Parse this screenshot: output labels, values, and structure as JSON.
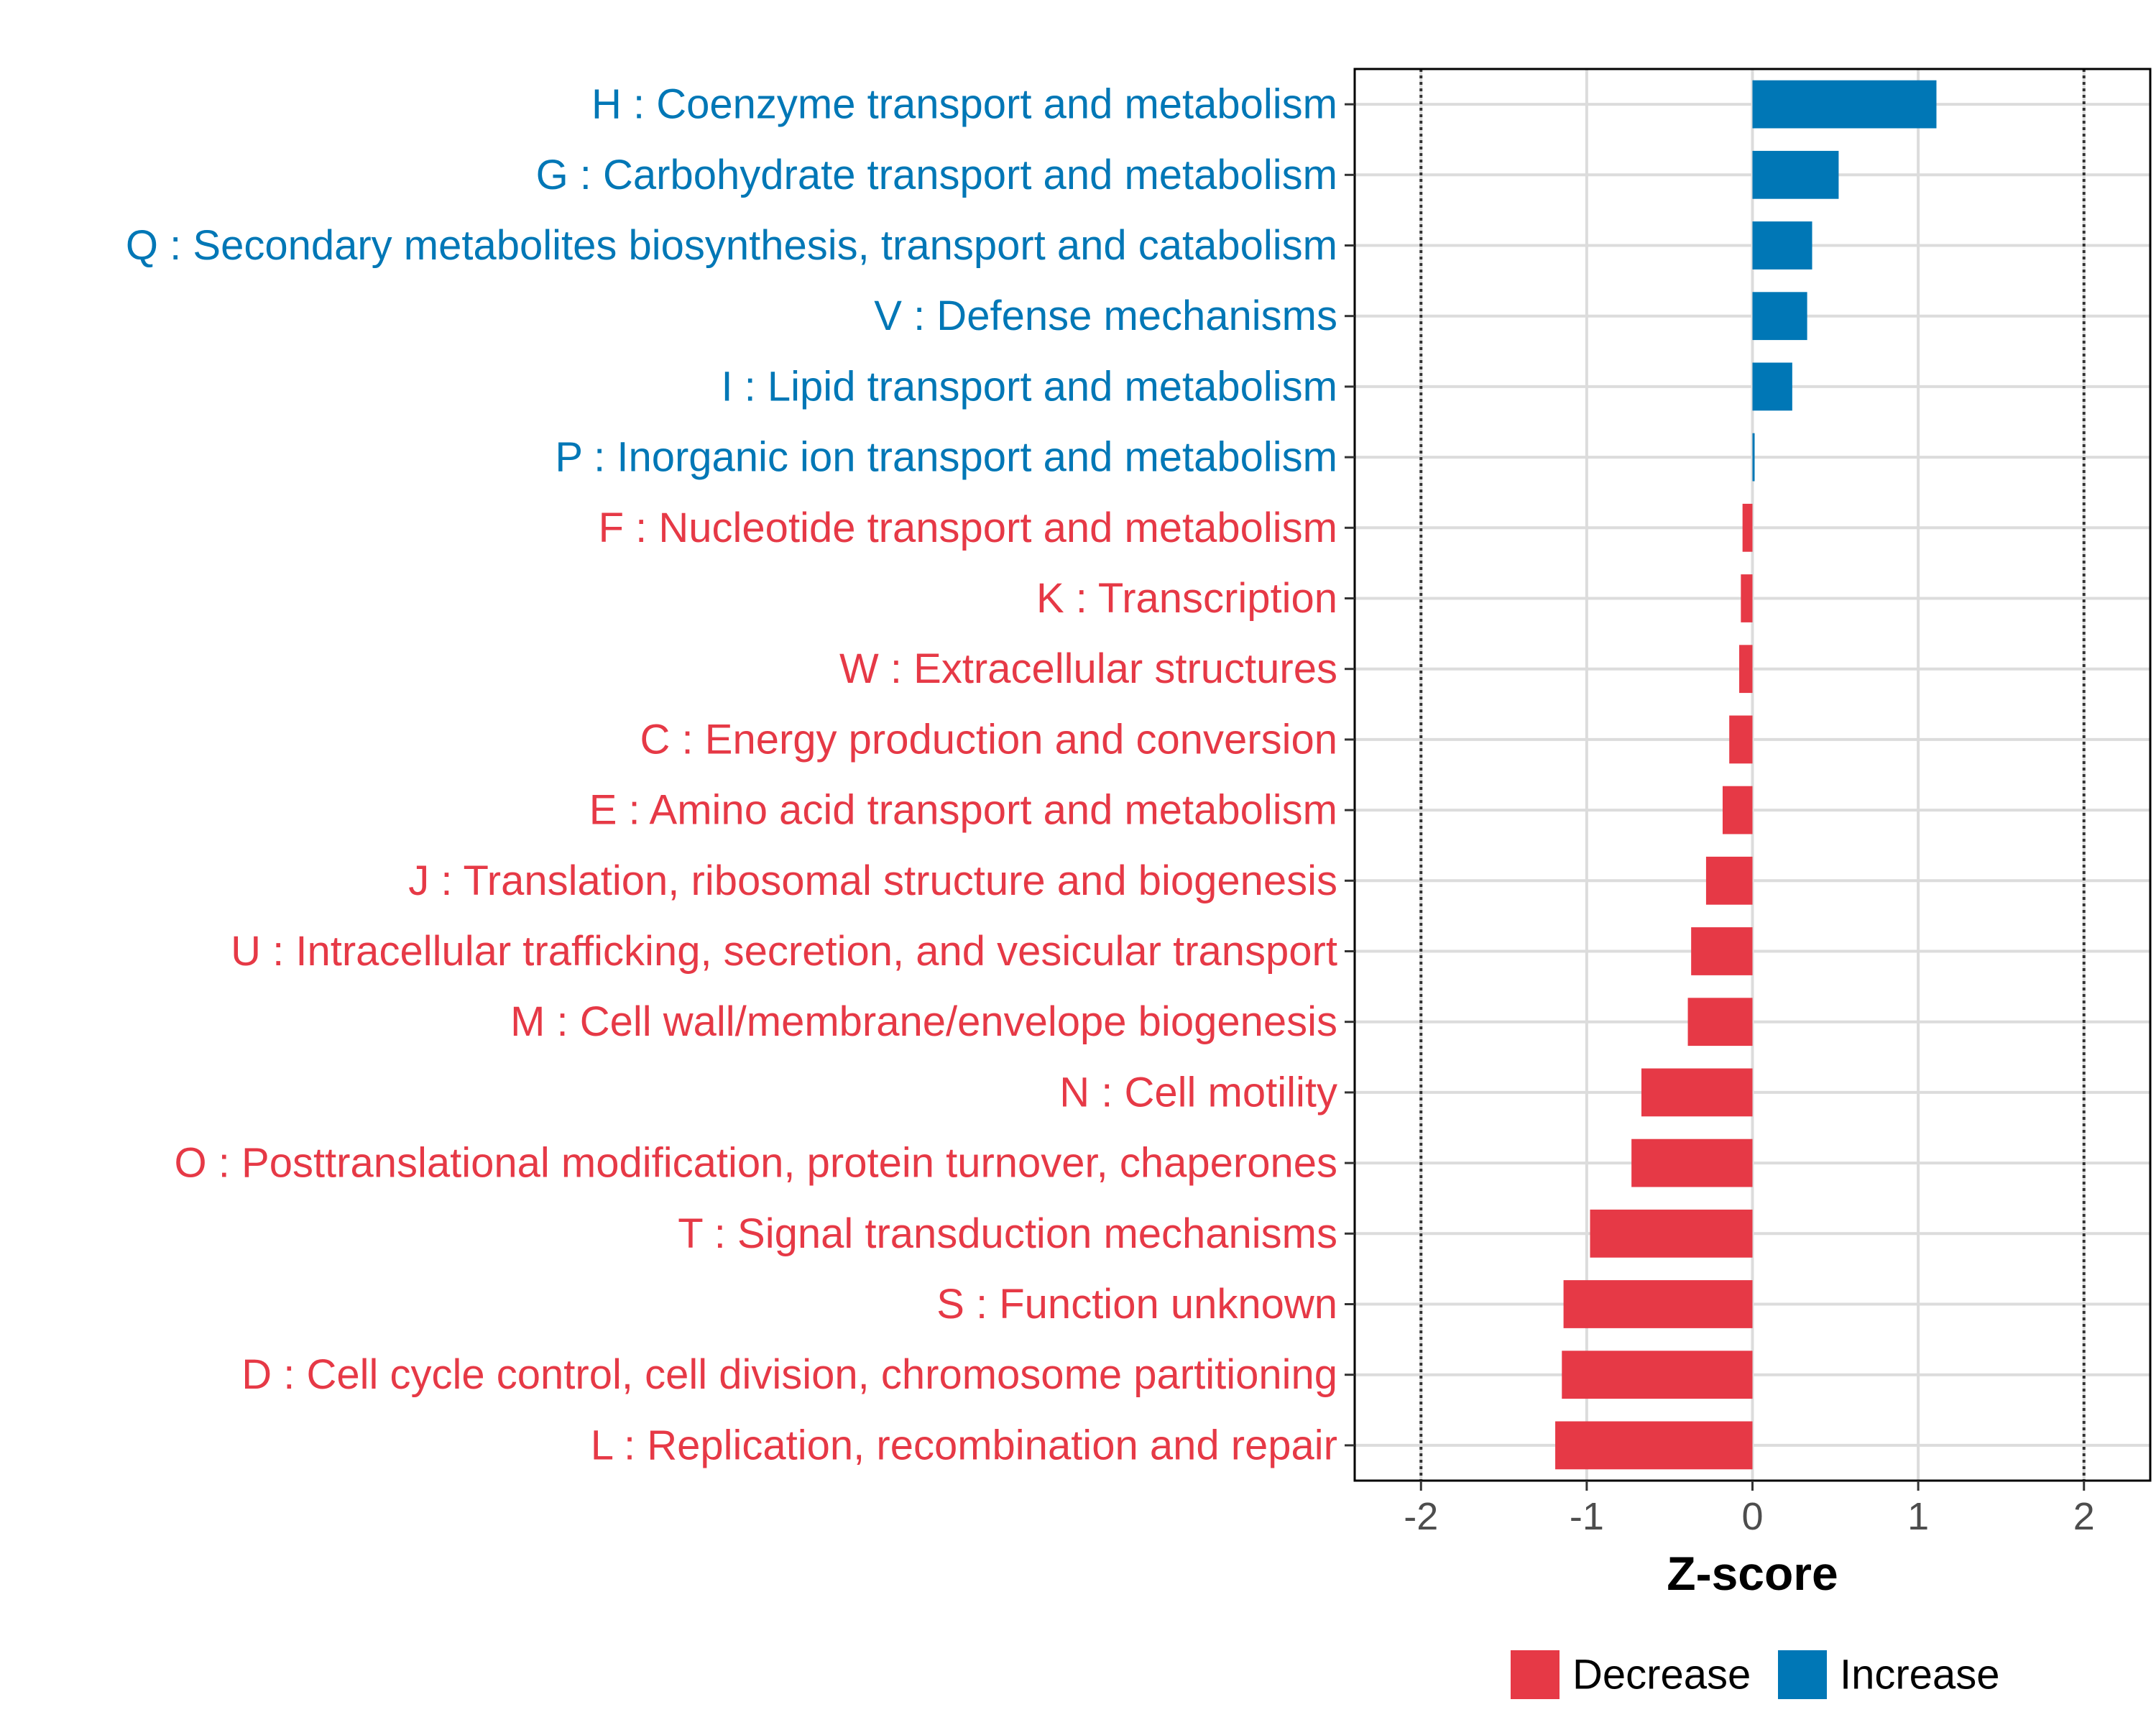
{
  "chart_data": {
    "type": "bar",
    "orientation": "horizontal",
    "xlabel": "Z-score",
    "xlim": [
      -2.4,
      2.4
    ],
    "xticks": [
      -2,
      -1,
      0,
      1,
      2
    ],
    "xtick_labels": [
      "-2",
      "-1",
      "0",
      "1",
      "2"
    ],
    "reference_lines": [
      -2,
      2
    ],
    "grid": true,
    "categories": [
      "H : Coenzyme transport and metabolism",
      "G : Carbohydrate transport and metabolism",
      "Q : Secondary metabolites biosynthesis, transport and catabolism",
      "V : Defense mechanisms",
      "I : Lipid transport and metabolism",
      "P : Inorganic ion transport and metabolism",
      "F : Nucleotide transport and metabolism",
      "K : Transcription",
      "W : Extracellular structures",
      "C : Energy production and conversion",
      "E : Amino acid transport and metabolism",
      "J : Translation, ribosomal structure and biogenesis",
      "U : Intracellular trafficking, secretion, and vesicular transport",
      "M : Cell wall/membrane/envelope biogenesis",
      "N : Cell motility",
      "O : Posttranslational modification, protein turnover, chaperones",
      "T : Signal transduction mechanisms",
      "S : Function unknown",
      "D : Cell cycle control, cell division, chromosome partitioning",
      "L : Replication, recombination and repair"
    ],
    "values": [
      1.11,
      0.52,
      0.36,
      0.33,
      0.24,
      0.01,
      -0.06,
      -0.07,
      -0.08,
      -0.14,
      -0.18,
      -0.28,
      -0.37,
      -0.39,
      -0.67,
      -0.73,
      -0.98,
      -1.14,
      -1.15,
      -1.19
    ],
    "groups": [
      "Increase",
      "Increase",
      "Increase",
      "Increase",
      "Increase",
      "Increase",
      "Decrease",
      "Decrease",
      "Decrease",
      "Decrease",
      "Decrease",
      "Decrease",
      "Decrease",
      "Decrease",
      "Decrease",
      "Decrease",
      "Decrease",
      "Decrease",
      "Decrease",
      "Decrease"
    ],
    "legend": [
      {
        "label": "Decrease",
        "color": "#E63946"
      },
      {
        "label": "Increase",
        "color": "#0077B6"
      }
    ],
    "legend_position": "bottom"
  }
}
